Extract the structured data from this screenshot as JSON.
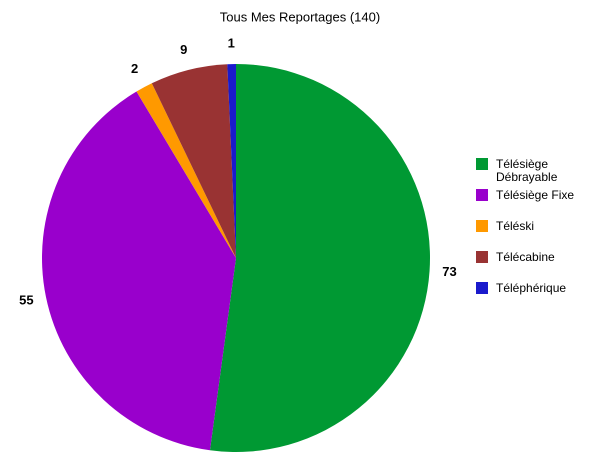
{
  "chart_data": {
    "type": "pie",
    "title": "Tous Mes Reportages (140)",
    "categories": [
      "Télésiège Débrayable",
      "Télésiège Fixe",
      "Téléski",
      "Télécabine",
      "Téléphérique"
    ],
    "values": [
      73,
      55,
      2,
      9,
      1
    ],
    "colors": [
      "#009933",
      "#9900cc",
      "#ff9900",
      "#993333",
      "#1a1acc"
    ]
  }
}
